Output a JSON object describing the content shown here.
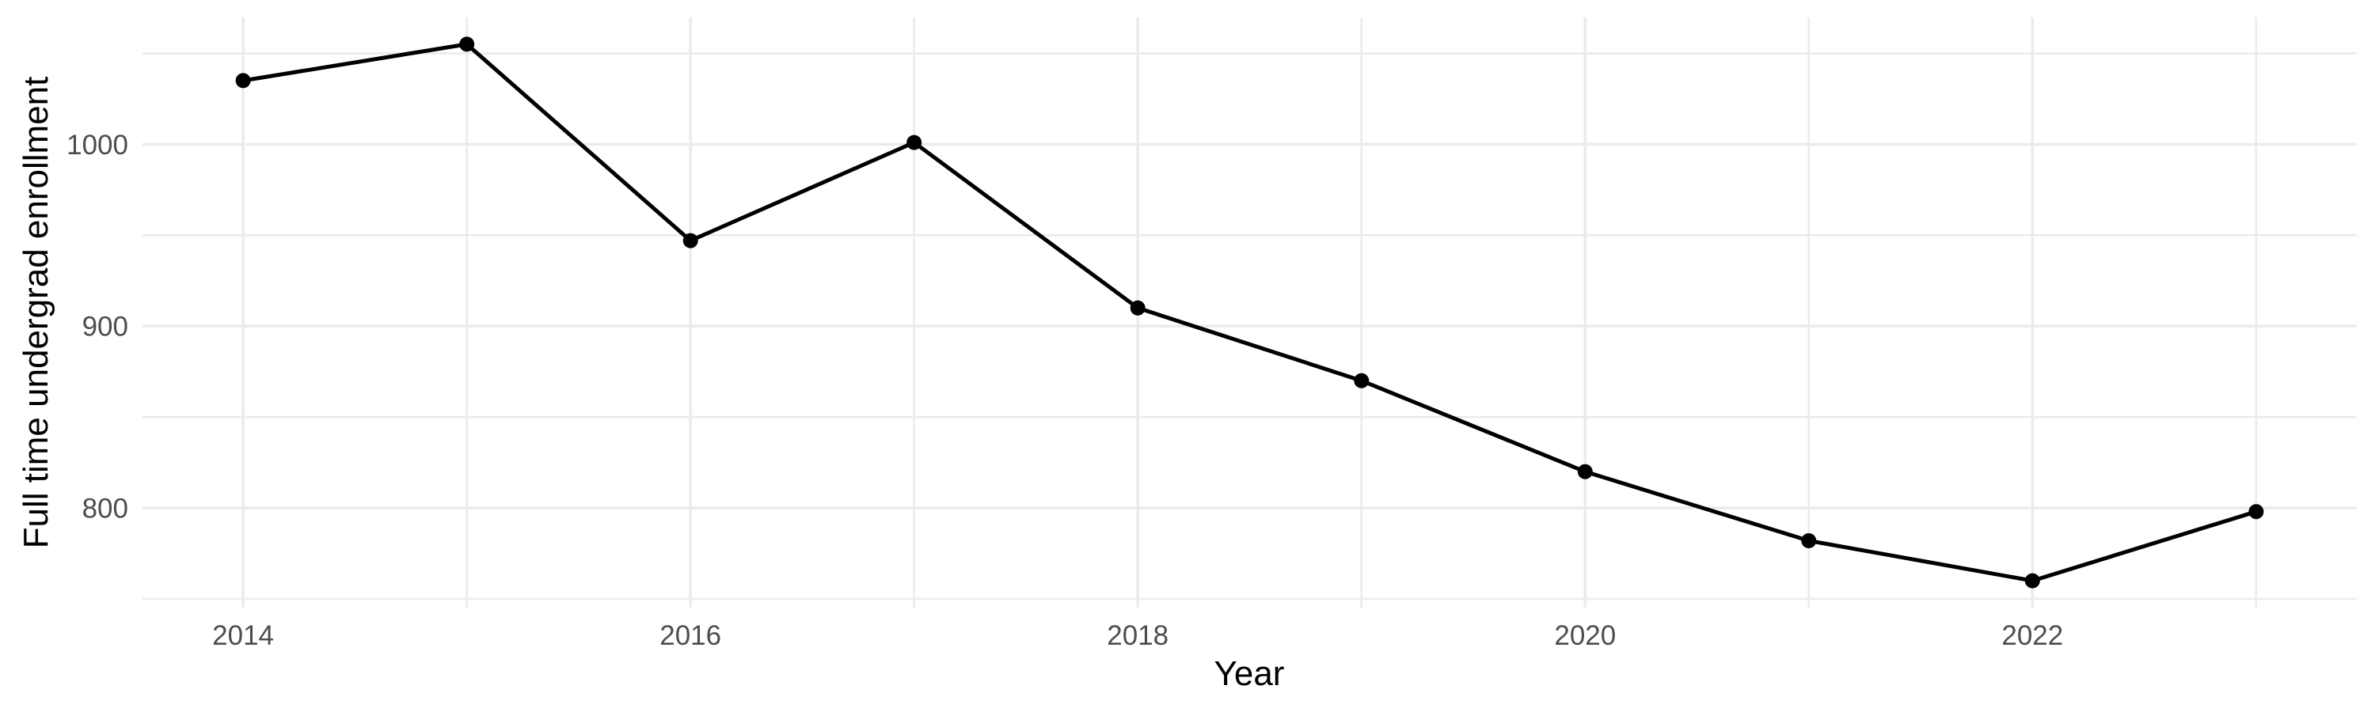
{
  "chart_data": {
    "type": "line",
    "title": "",
    "xlabel": "Year",
    "ylabel": "Full time undergrad enrollment",
    "x": [
      2014,
      2015,
      2016,
      2017,
      2018,
      2019,
      2020,
      2021,
      2022,
      2023
    ],
    "series": [
      {
        "name": "Full time undergrad enrollment",
        "values": [
          1035,
          1055,
          947,
          1001,
          910,
          870,
          820,
          782,
          760,
          798
        ]
      }
    ],
    "x_major_ticks": [
      2014,
      2016,
      2018,
      2020,
      2022
    ],
    "x_tick_labels": [
      "2014",
      "2016",
      "2018",
      "2020",
      "2022"
    ],
    "x_minor_gridlines": [
      2015,
      2017,
      2019,
      2021,
      2023
    ],
    "y_major_ticks": [
      800,
      900,
      1000
    ],
    "y_tick_labels": [
      "800",
      "900",
      "1000"
    ],
    "y_minor_gridlines": [
      750,
      850,
      950,
      1050
    ],
    "xlim": [
      2013.55,
      2023.45
    ],
    "ylim": [
      745.25,
      1069.75
    ],
    "grid": "on",
    "legend": "none",
    "colors": {
      "line": "#000000",
      "point": "#000000",
      "grid": "#EBEBEB",
      "axis_text": "#4D4D4D",
      "axis_title": "#000000",
      "background": "#FFFFFF"
    }
  }
}
